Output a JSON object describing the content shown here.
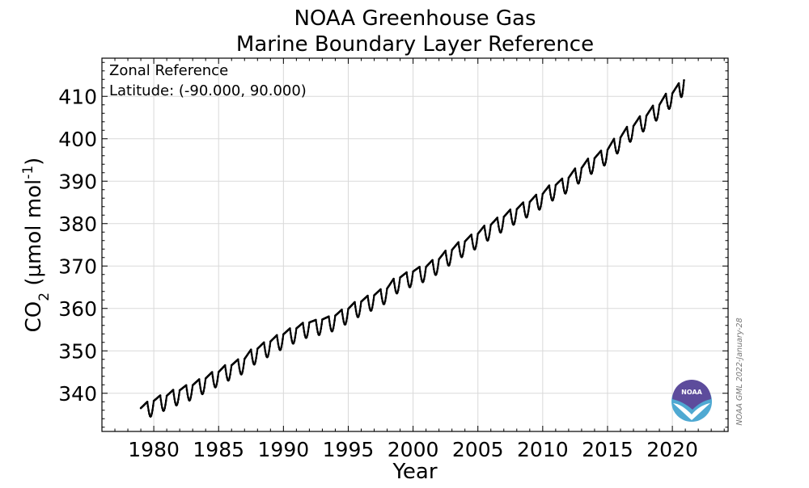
{
  "chart_data": {
    "type": "line",
    "title": [
      "NOAA Greenhouse Gas",
      "Marine Boundary Layer Reference"
    ],
    "xlabel": "Year",
    "ylabel": "CO2 (µmol mol-1)",
    "xlim": [
      1976.0,
      2024.3
    ],
    "ylim": [
      331.0,
      419.0
    ],
    "xticks": [
      1980,
      1985,
      1990,
      1995,
      2000,
      2005,
      2010,
      2015,
      2020
    ],
    "yticks": [
      340,
      350,
      360,
      370,
      380,
      390,
      400,
      410
    ],
    "grid": true,
    "annotations": [
      "Zonal Reference",
      "Latitude: (-90.000, 90.000)"
    ],
    "credit": "NOAA GML 2022-January-28",
    "logo": "noaa-logo",
    "series": [
      {
        "color": "#000000",
        "marker": "dot",
        "x": [
          1979.0,
          1979.5,
          1980.0,
          1980.5,
          1981.0,
          1981.5,
          1982.0,
          1982.5,
          1983.0,
          1983.5,
          1984.0,
          1984.5,
          1985.0,
          1985.5,
          1986.0,
          1986.5,
          1987.0,
          1987.5,
          1988.0,
          1988.5,
          1989.0,
          1989.5,
          1990.0,
          1990.5,
          1991.0,
          1991.5,
          1992.0,
          1992.5,
          1993.0,
          1993.5,
          1994.0,
          1994.5,
          1995.0,
          1995.5,
          1996.0,
          1996.5,
          1997.0,
          1997.5,
          1998.0,
          1998.5,
          1999.0,
          1999.5,
          2000.0,
          2000.5,
          2001.0,
          2001.5,
          2002.0,
          2002.5,
          2003.0,
          2003.5,
          2004.0,
          2004.5,
          2005.0,
          2005.5,
          2006.0,
          2006.5,
          2007.0,
          2007.5,
          2008.0,
          2008.5,
          2009.0,
          2009.5,
          2010.0,
          2010.5,
          2011.0,
          2011.5,
          2012.0,
          2012.5,
          2013.0,
          2013.5,
          2014.0,
          2014.5,
          2015.0,
          2015.5,
          2016.0,
          2016.5,
          2017.0,
          2017.5,
          2018.0,
          2018.5,
          2019.0,
          2019.5,
          2020.0,
          2020.5,
          2020.9
        ],
        "y": [
          336.5,
          338.0,
          338.2,
          339.5,
          339.4,
          340.8,
          340.7,
          341.9,
          341.9,
          343.3,
          343.5,
          345.0,
          345.0,
          346.6,
          346.6,
          348.0,
          348.1,
          350.3,
          350.5,
          352.0,
          352.2,
          353.7,
          353.9,
          355.3,
          355.3,
          356.6,
          356.7,
          357.3,
          357.4,
          358.1,
          358.3,
          359.7,
          359.9,
          361.5,
          361.6,
          363.0,
          363.1,
          364.5,
          364.7,
          367.0,
          367.3,
          368.5,
          368.7,
          369.8,
          369.8,
          371.4,
          371.6,
          373.6,
          373.8,
          375.6,
          375.8,
          377.4,
          377.6,
          379.5,
          379.7,
          381.4,
          381.6,
          383.3,
          383.4,
          385.0,
          385.1,
          386.8,
          387.0,
          389.0,
          389.1,
          390.6,
          390.8,
          393.0,
          393.1,
          395.3,
          395.4,
          397.2,
          397.4,
          400.0,
          400.3,
          402.8,
          403.0,
          405.3,
          405.4,
          407.8,
          408.0,
          410.6,
          410.7,
          413.1,
          413.8
        ]
      }
    ]
  }
}
